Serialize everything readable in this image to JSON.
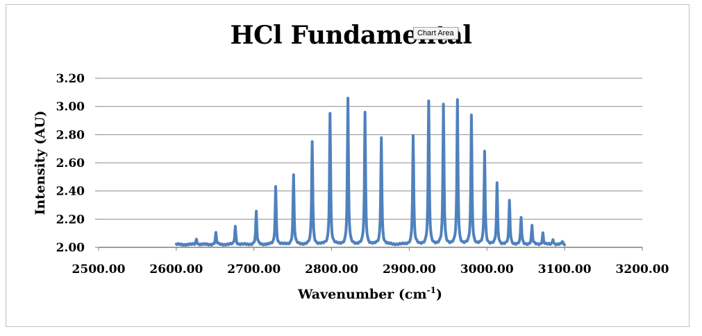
{
  "tooltip": "Chart Area",
  "chart_data": {
    "type": "line",
    "title": "HCl Fundamental",
    "xlabel": "Wavenumber (cm",
    "xlabel_sup": "-1",
    "xlabel_end": ")",
    "ylabel": "Intensity (AU)",
    "xlim": [
      2500,
      3200
    ],
    "ylim": [
      2.0,
      3.2
    ],
    "x_ticks": [
      "2500.00",
      "2600.00",
      "2700.00",
      "2800.00",
      "2900.00",
      "3000.00",
      "3100.00",
      "3200.00"
    ],
    "y_ticks": [
      "2.00",
      "2.20",
      "2.40",
      "2.60",
      "2.80",
      "3.00",
      "3.20"
    ],
    "grid": "horizontal",
    "legend": "none",
    "series_color": "#4f81bd",
    "baseline": 2.02,
    "range": [
      2600,
      3100
    ],
    "series": [
      {
        "peaks": [
          {
            "x": 2626,
            "y": 2.06
          },
          {
            "x": 2651,
            "y": 2.1
          },
          {
            "x": 2676,
            "y": 2.15
          },
          {
            "x": 2703,
            "y": 2.25
          },
          {
            "x": 2728,
            "y": 2.43
          },
          {
            "x": 2751,
            "y": 2.51
          },
          {
            "x": 2775,
            "y": 2.75
          },
          {
            "x": 2798,
            "y": 2.95
          },
          {
            "x": 2821,
            "y": 3.05
          },
          {
            "x": 2843,
            "y": 2.95
          },
          {
            "x": 2864,
            "y": 2.78
          },
          {
            "x": 2905,
            "y": 2.79
          },
          {
            "x": 2925,
            "y": 3.03
          },
          {
            "x": 2944,
            "y": 3.01
          },
          {
            "x": 2962,
            "y": 3.04
          },
          {
            "x": 2980,
            "y": 2.93
          },
          {
            "x": 2997,
            "y": 2.68
          },
          {
            "x": 3013,
            "y": 2.45
          },
          {
            "x": 3029,
            "y": 2.33
          },
          {
            "x": 3044,
            "y": 2.21
          },
          {
            "x": 3058,
            "y": 2.15
          },
          {
            "x": 3072,
            "y": 2.1
          },
          {
            "x": 3085,
            "y": 2.06
          },
          {
            "x": 3097,
            "y": 2.04
          }
        ]
      }
    ]
  }
}
